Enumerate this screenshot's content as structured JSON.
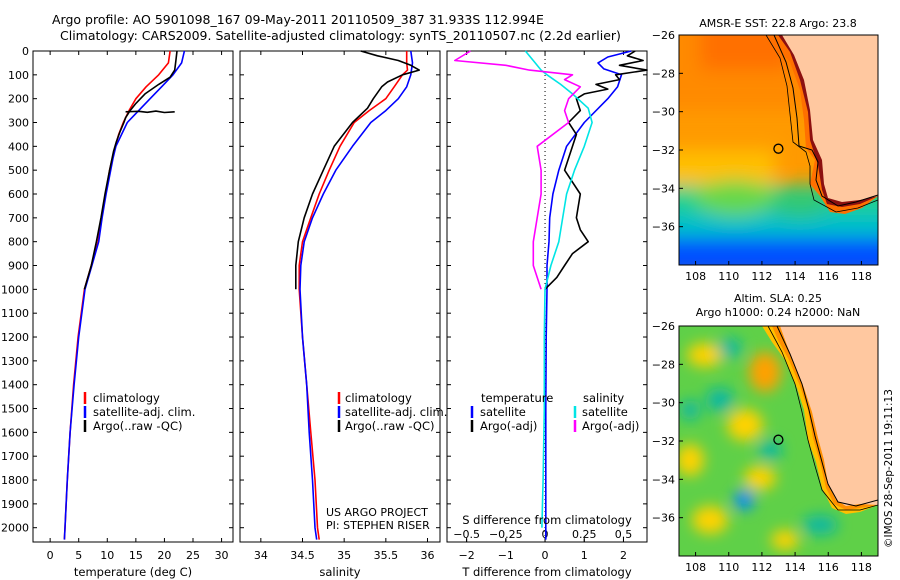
{
  "header": {
    "title_line1": "Argo profile: AO 5901098_167 09-May-2011 20110509_387 31.933S 112.994E",
    "title_line2": "Climatology: CARS2009. Satellite-adjusted climatology: synTS_20110507.nc (2.2d earlier)"
  },
  "footer": {
    "credit": "©IMOS 28-Sep-2011 19:11:13",
    "project_line1": "US ARGO PROJECT",
    "project_line2": "PI: STEPHEN RISER"
  },
  "colors": {
    "climatology": "#ff0000",
    "satellite": "#0000ff",
    "argo": "#000000",
    "sat_salinity": "#00e5e5",
    "argo_salinity": "#ff00ff"
  },
  "chart_data": [
    {
      "type": "line",
      "name": "temperature-profile",
      "xlabel": "temperature (deg C)",
      "ylabel": "",
      "xlim": [
        -3,
        32
      ],
      "ylim": [
        2060,
        0
      ],
      "xticks": [
        0,
        5,
        10,
        15,
        20,
        25,
        30
      ],
      "yticks": [
        0,
        100,
        200,
        300,
        400,
        500,
        600,
        700,
        800,
        900,
        1000,
        1100,
        1200,
        1300,
        1400,
        1500,
        1600,
        1700,
        1800,
        1900,
        2000
      ],
      "legend": [
        "climatology",
        "satellite-adj. clim.",
        "Argo(..raw -QC)"
      ],
      "series": [
        {
          "name": "climatology",
          "color": "#ff0000",
          "depth": [
            0,
            50,
            100,
            150,
            200,
            250,
            300,
            350,
            400,
            450,
            500,
            600,
            700,
            800,
            900,
            1000,
            1200,
            1400,
            1600,
            1800,
            2000,
            2050
          ],
          "values": [
            21,
            20.7,
            19,
            16.8,
            15,
            13.8,
            12.8,
            12,
            11.4,
            10.9,
            10.4,
            9.7,
            9,
            8.4,
            7.2,
            6,
            4.9,
            4.1,
            3.5,
            3,
            2.6,
            2.5
          ]
        },
        {
          "name": "satellite-adj. clim.",
          "color": "#0000ff",
          "depth": [
            0,
            50,
            100,
            150,
            200,
            250,
            300,
            350,
            400,
            450,
            500,
            600,
            700,
            800,
            900,
            1000,
            1200,
            1400,
            1600,
            1800,
            2000,
            2050
          ],
          "values": [
            23.5,
            23,
            21.5,
            19.5,
            17.5,
            15.5,
            13.5,
            12.5,
            11.5,
            11,
            10.6,
            9.8,
            9.1,
            8.5,
            7.3,
            6.1,
            5,
            4.2,
            3.5,
            3,
            2.6,
            2.5
          ]
        },
        {
          "name": "Argo(..raw -QC)",
          "color": "#000000",
          "depth": [
            0,
            40,
            80,
            110,
            140,
            180,
            220,
            250,
            280,
            300,
            340,
            380,
            420,
            500,
            600,
            700,
            800,
            900,
            1000
          ],
          "values": [
            22.2,
            22,
            21.8,
            21,
            19,
            16.6,
            15,
            14,
            13.2,
            12.9,
            12.2,
            11.6,
            11.1,
            10.4,
            9.6,
            8.9,
            8.1,
            7.2,
            6
          ]
        },
        {
          "name": "Argo spike",
          "color": "#000000",
          "depth": [
            255,
            253,
            257,
            252,
            258,
            255
          ],
          "values": [
            13.2,
            15.5,
            17,
            18.5,
            20,
            21.8
          ]
        }
      ]
    },
    {
      "type": "line",
      "name": "salinity-profile",
      "xlabel": "salinity",
      "ylabel": "",
      "xlim": [
        33.75,
        36.15
      ],
      "ylim": [
        2060,
        0
      ],
      "xticks": [
        34,
        34.5,
        35,
        35.5,
        36
      ],
      "legend": [
        "climatology",
        "satellite-adj. clim.",
        "Argo(..raw -QC)"
      ],
      "series": [
        {
          "name": "climatology",
          "color": "#ff0000",
          "depth": [
            0,
            50,
            80,
            100,
            150,
            200,
            250,
            300,
            400,
            500,
            600,
            700,
            800,
            900,
            1000,
            1200,
            1400,
            1600,
            1800,
            2000,
            2050
          ],
          "values": [
            35.75,
            35.75,
            35.76,
            35.7,
            35.6,
            35.5,
            35.3,
            35.12,
            34.95,
            34.82,
            34.7,
            34.6,
            34.5,
            34.46,
            34.46,
            34.5,
            34.55,
            34.6,
            34.65,
            34.68,
            34.7
          ]
        },
        {
          "name": "satellite-adj. clim.",
          "color": "#0000ff",
          "depth": [
            0,
            50,
            100,
            150,
            200,
            250,
            300,
            400,
            500,
            600,
            700,
            800,
            900,
            1000,
            1200,
            1400,
            1600,
            1800,
            2000,
            2050
          ],
          "values": [
            35.8,
            35.82,
            35.8,
            35.75,
            35.65,
            35.5,
            35.32,
            35.1,
            34.9,
            34.75,
            34.62,
            34.52,
            34.48,
            34.47,
            34.5,
            34.55,
            34.58,
            34.62,
            34.65,
            34.67
          ]
        },
        {
          "name": "Argo(..raw -QC)",
          "color": "#000000",
          "depth": [
            0,
            20,
            40,
            60,
            80,
            100,
            130,
            150,
            200,
            240,
            300,
            400,
            500,
            600,
            700,
            800,
            900,
            950,
            1000
          ],
          "values": [
            35.2,
            35.4,
            35.65,
            35.8,
            35.9,
            35.7,
            35.52,
            35.45,
            35.35,
            35.28,
            35.1,
            34.88,
            34.75,
            34.62,
            34.52,
            34.45,
            34.42,
            34.42,
            34.42
          ]
        }
      ]
    },
    {
      "type": "line",
      "name": "difference-profile",
      "xlabel": "T difference from climatology",
      "xlabel2": "S difference from climatology",
      "ylabel": "",
      "xlim": [
        -2.5,
        2.6
      ],
      "ylim": [
        2060,
        0
      ],
      "xticks": [
        -2,
        -1,
        0,
        1,
        2
      ],
      "xticks_s": [
        -0.5,
        -0.25,
        0,
        0.25,
        0.5
      ],
      "legend_temperature_title": "temperature",
      "legend_salinity_title": "salinity",
      "legend": [
        "satellite",
        "Argo(-adj)",
        "satellite",
        "Argo(-adj)"
      ],
      "series": [
        {
          "name": "T satellite",
          "color": "#0000ff",
          "depth": [
            0,
            25,
            50,
            75,
            100,
            150,
            200,
            300,
            400,
            500,
            600,
            700,
            800,
            900,
            1000,
            1200,
            1500,
            1800,
            2050
          ],
          "values": [
            2.2,
            1.6,
            1.35,
            1.5,
            1.95,
            1.85,
            1.6,
            1.0,
            0.55,
            0.35,
            0.2,
            0.12,
            0.1,
            0.05,
            0.05,
            0.03,
            0.02,
            0.02,
            0.02
          ]
        },
        {
          "name": "T Argo(-adj)",
          "color": "#000000",
          "depth": [
            0,
            20,
            40,
            60,
            80,
            100,
            120,
            140,
            160,
            180,
            200,
            250,
            300,
            350,
            400,
            500,
            600,
            700,
            750,
            800,
            850,
            900,
            950,
            1000
          ],
          "values": [
            2.3,
            2.1,
            2.5,
            1.9,
            2.6,
            1.8,
            1.9,
            1.3,
            1.6,
            1.0,
            0.8,
            0.9,
            0.6,
            0.8,
            0.7,
            0.5,
            0.9,
            0.8,
            0.9,
            1.1,
            0.7,
            0.5,
            0.3,
            0.0
          ]
        },
        {
          "name": "S satellite",
          "color": "#00e5e5",
          "depth": [
            0,
            50,
            80,
            100,
            140,
            180,
            240,
            300,
            400,
            500,
            600,
            700,
            800,
            900,
            1000,
            1200,
            1500,
            1800,
            2000
          ],
          "values": [
            -0.5,
            -0.25,
            -0.1,
            0.05,
            0.4,
            0.7,
            1.1,
            1.2,
            1.0,
            0.75,
            0.55,
            0.45,
            0.35,
            0.15,
            0.0,
            -0.02,
            -0.02,
            -0.05,
            -0.08
          ]
        },
        {
          "name": "S Argo(-adj)",
          "color": "#ff00ff",
          "depth": [
            0,
            40,
            60,
            80,
            100,
            120,
            150,
            200,
            250,
            300,
            400,
            500,
            600,
            700,
            800,
            900,
            950,
            1000
          ],
          "values": [
            -1.9,
            -2.3,
            -1.0,
            -0.4,
            0.7,
            0.5,
            0.9,
            0.6,
            0.5,
            0.6,
            -0.2,
            -0.1,
            -0.1,
            -0.2,
            -0.3,
            -0.3,
            -0.2,
            -0.1
          ]
        }
      ]
    },
    {
      "type": "heatmap",
      "name": "sst-map",
      "title": "AMSR-E SST: 22.8 Argo: 23.8",
      "xlim": [
        107,
        119
      ],
      "ylim": [
        -38,
        -26
      ],
      "xticks": [
        108,
        110,
        112,
        114,
        116,
        118
      ],
      "yticks": [
        -26,
        -28,
        -30,
        -32,
        -34,
        -36
      ],
      "float_position": [
        112.994,
        -31.933
      ]
    },
    {
      "type": "heatmap",
      "name": "sla-map",
      "title_line1": "Altim. SLA: 0.25",
      "title_line2": "Argo h1000: 0.24 h2000: NaN",
      "xlim": [
        107,
        119
      ],
      "ylim": [
        -38,
        -26
      ],
      "xticks": [
        108,
        110,
        112,
        114,
        116,
        118
      ],
      "yticks": [
        -26,
        -28,
        -30,
        -32,
        -34,
        -36
      ],
      "float_position": [
        112.994,
        -31.933
      ]
    }
  ]
}
